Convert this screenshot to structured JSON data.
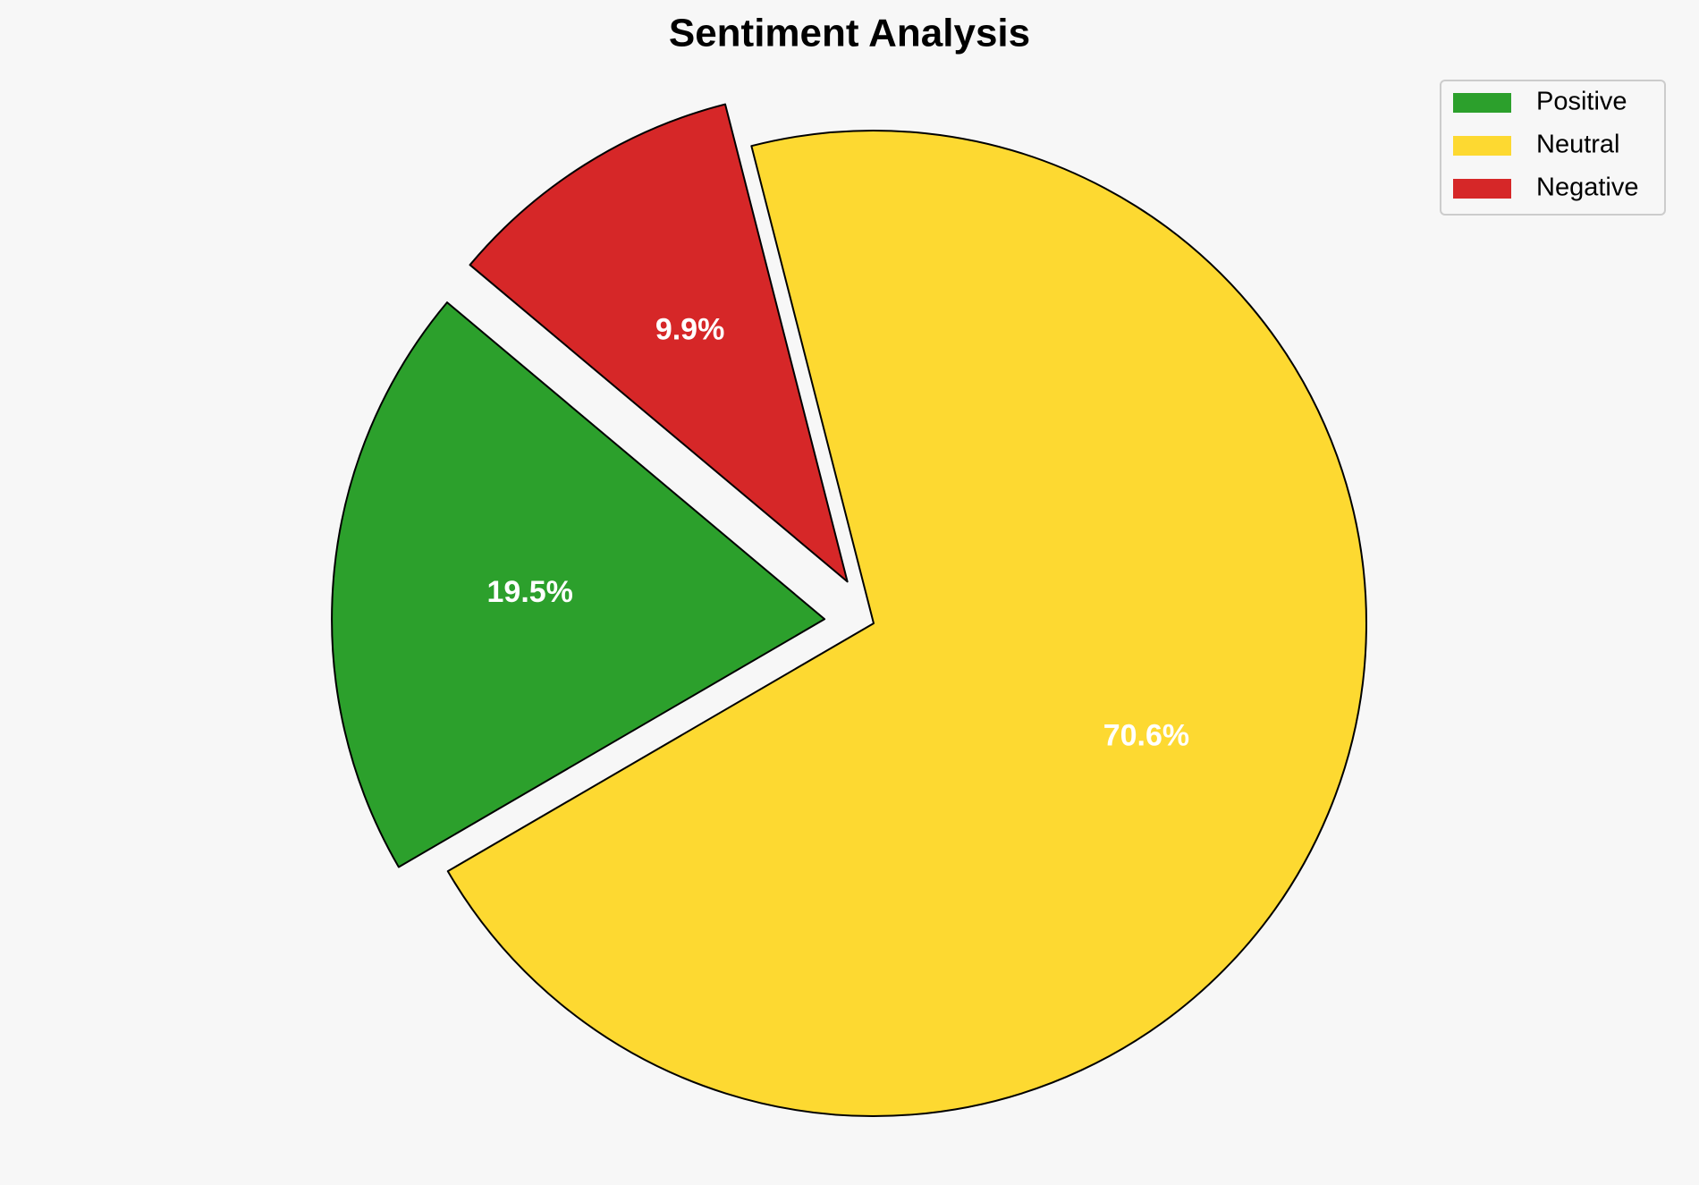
{
  "chart_data": {
    "type": "pie",
    "title": "Sentiment Analysis",
    "categories": [
      "Positive",
      "Neutral",
      "Negative"
    ],
    "values": [
      19.5,
      70.6,
      9.9
    ],
    "value_labels": [
      "19.5%",
      "70.6%",
      "9.9%"
    ],
    "colors": [
      "#2ca02c",
      "#fdd931",
      "#d62728"
    ],
    "explode": [
      0.1,
      0,
      0.1
    ],
    "startangle": 140,
    "legend": "upper right"
  }
}
